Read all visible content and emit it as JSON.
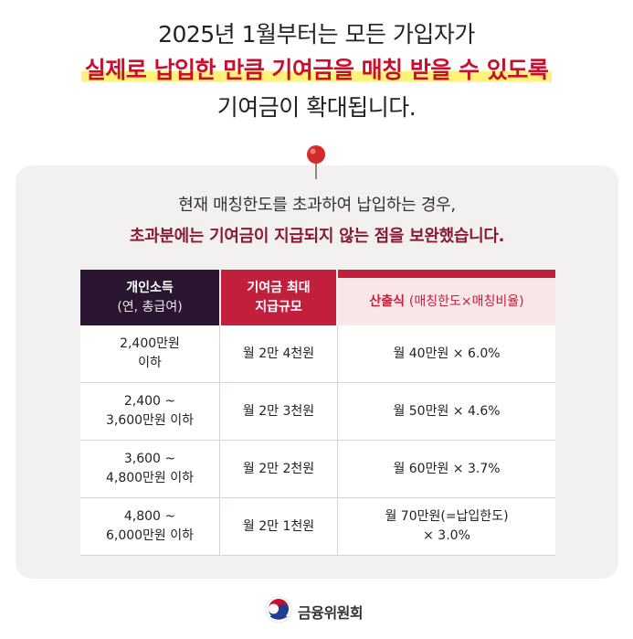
{
  "headline": {
    "line1": "2025년 1월부터는 모든 가입자가",
    "line2": "실제로 납입한 만큼 기여금을 매칭 받을 수 있도록",
    "line3": "기여금이 확대됩니다."
  },
  "intro": {
    "line1": "현재 매칭한도를 초과하여 납입하는 경우,",
    "line2": "초과분에는 기여금이 지급되지 않는 점을 보완했습니다."
  },
  "table": {
    "headers": {
      "col1_main": "개인소득",
      "col1_sub": "(연, 총급여)",
      "col2_line1": "기여금 최대",
      "col2_line2": "지급규모",
      "col3_main": "산출식",
      "col3_sub": "(매칭한도×매칭비율)"
    },
    "rows": [
      {
        "income_line1": "2,400만원",
        "income_line2": "이하",
        "max": "월 2만 4천원",
        "formula_line1": "월 40만원 × 6.0%",
        "formula_line2": ""
      },
      {
        "income_line1": "2,400 ~",
        "income_line2": "3,600만원 이하",
        "max": "월 2만 3천원",
        "formula_line1": "월 50만원 × 4.6%",
        "formula_line2": ""
      },
      {
        "income_line1": "3,600 ~",
        "income_line2": "4,800만원 이하",
        "max": "월 2만 2천원",
        "formula_line1": "월 60만원 × 3.7%",
        "formula_line2": ""
      },
      {
        "income_line1": "4,800 ~",
        "income_line2": "6,000만원 이하",
        "max": "월 2만 1천원",
        "formula_line1": "월 70만원(=납입한도)",
        "formula_line2": "× 3.0%"
      }
    ]
  },
  "footer": {
    "org_name": "금융위원회",
    "logo_icon": "taegeuk-logo-icon"
  },
  "colors": {
    "accent_red": "#c21f3c",
    "dark_purple": "#2a1630",
    "highlight_yellow": "#fff27a",
    "panel_bg": "#f3f1f0"
  },
  "icons": {
    "pin": "push-pin-icon"
  }
}
